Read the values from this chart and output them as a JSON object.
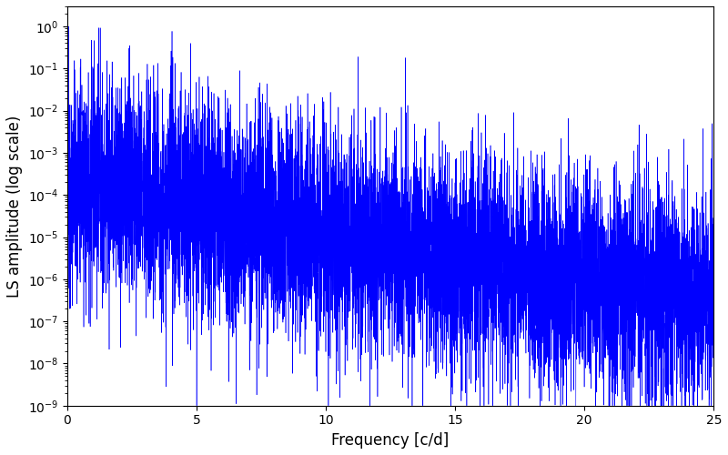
{
  "title": "",
  "xlabel": "Frequency [c/d]",
  "ylabel": "LS amplitude (log scale)",
  "xlim": [
    0,
    25
  ],
  "ylim": [
    1e-09,
    3.0
  ],
  "line_color": "blue",
  "line_width": 0.4,
  "figsize": [
    8.0,
    5.0
  ],
  "dpi": 100,
  "seed": 12345,
  "n_points": 8000,
  "background_color": "#ffffff"
}
